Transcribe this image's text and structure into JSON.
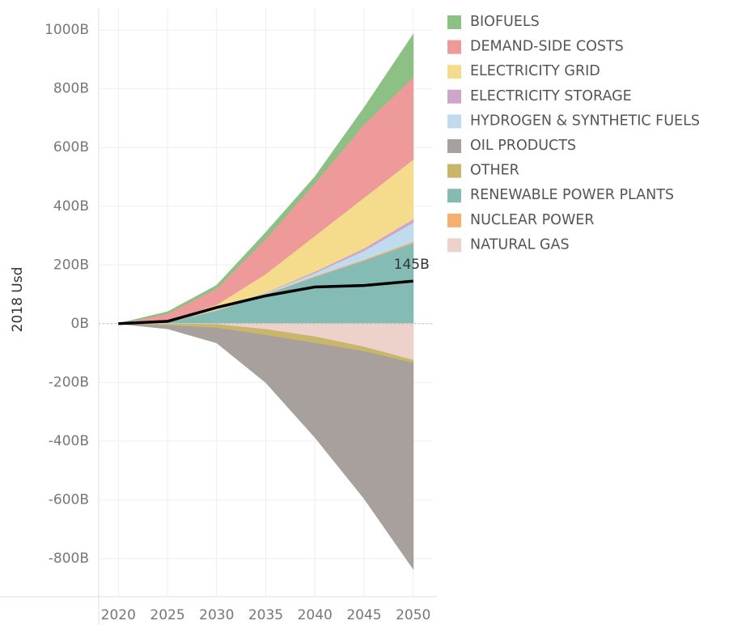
{
  "chart_data": {
    "type": "area",
    "stacked": true,
    "y_label": "2018 Usd",
    "x": [
      2020,
      2025,
      2030,
      2035,
      2040,
      2045,
      2050
    ],
    "xlim": [
      2018,
      2052
    ],
    "xticks": [
      2020,
      2025,
      2030,
      2035,
      2040,
      2045,
      2050
    ],
    "ylim": [
      -930,
      1075
    ],
    "yticks": [
      {
        "value": -800,
        "label": "-800B"
      },
      {
        "value": -600,
        "label": "-600B"
      },
      {
        "value": -400,
        "label": "-400B"
      },
      {
        "value": -200,
        "label": "-200B"
      },
      {
        "value": 0,
        "label": "0B"
      },
      {
        "value": 200,
        "label": "200B"
      },
      {
        "value": 400,
        "label": "400B"
      },
      {
        "value": 600,
        "label": "600B"
      },
      {
        "value": 800,
        "label": "800B"
      },
      {
        "value": 1000,
        "label": "1000B"
      }
    ],
    "grid": true,
    "legend": "right",
    "series": [
      {
        "name": "BIOFUELS",
        "color": "#8cc084",
        "values": [
          0,
          5,
          10,
          20,
          20,
          55,
          145
        ]
      },
      {
        "name": "DEMAND-SIDE COSTS",
        "color": "#ee9a9a",
        "values": [
          0,
          25,
          55,
          120,
          180,
          250,
          280
        ]
      },
      {
        "name": "ELECTRICITY GRID",
        "color": "#f5dc8c",
        "values": [
          0,
          5,
          17,
          63,
          122,
          173,
          203
        ]
      },
      {
        "name": "ELECTRICITY STORAGE",
        "color": "#cda6c9",
        "values": [
          0,
          0,
          1,
          2,
          5,
          8,
          12
        ]
      },
      {
        "name": "HYDROGEN & SYNTHETIC FUELS",
        "color": "#bfdcef",
        "values": [
          0,
          0,
          1,
          3,
          10,
          30,
          65
        ]
      },
      {
        "name": "OIL PRODUCTS",
        "color": "#a8a09d",
        "values": [
          0,
          -10,
          -50,
          -160,
          -320,
          -500,
          -700
        ]
      },
      {
        "name": "OTHER",
        "color": "#c9b66a",
        "values": [
          0,
          -5,
          -12,
          -20,
          -22,
          -15,
          -10
        ]
      },
      {
        "name": "RENEWABLE POWER PLANTS",
        "color": "#84bcb5",
        "values": [
          0,
          5,
          45,
          100,
          160,
          215,
          275
        ]
      },
      {
        "name": "NUCLEAR POWER",
        "color": "#f5b070",
        "values": [
          0,
          0,
          1,
          2,
          3,
          4,
          5
        ]
      },
      {
        "name": "NATURAL GAS",
        "color": "#ecd2ca",
        "values": [
          0,
          -2,
          -3,
          -20,
          -45,
          -80,
          -125
        ]
      }
    ],
    "net": {
      "color": "#000000",
      "values": [
        0,
        8,
        55,
        95,
        125,
        130,
        145
      ],
      "end_label": "145B"
    }
  }
}
